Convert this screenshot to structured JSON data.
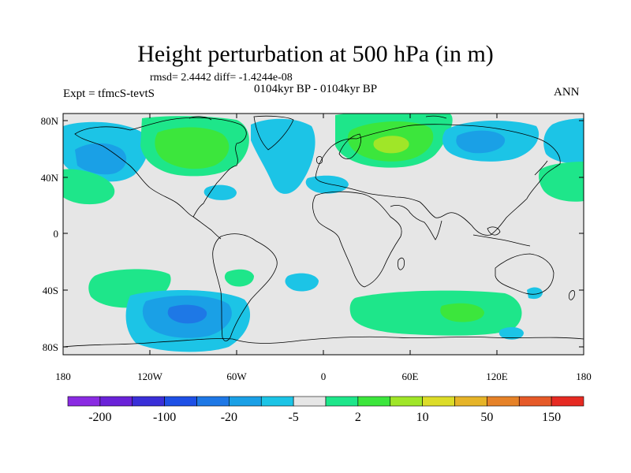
{
  "title": "Height perturbation at 500 hPa (in m)",
  "stats": "rmsd= 2.4442 diff= -1.4244e-08",
  "period": "0104kyr BP - 0104kyr BP",
  "experiment": "Expt = tfmcS-tevtS",
  "season": "ANN",
  "lat_labels": [
    "80N",
    "40N",
    "0",
    "40S",
    "80S"
  ],
  "lon_labels": [
    "180",
    "120W",
    "60W",
    "0",
    "60E",
    "120E",
    "180"
  ],
  "colorbar": {
    "colors": [
      "#8a2be2",
      "#6a22d8",
      "#3a2fd8",
      "#1e50e6",
      "#1e78e6",
      "#1aa0e6",
      "#1cc4e6",
      "#e6e6e6",
      "#1ee68a",
      "#3ce63c",
      "#a0e628",
      "#dcdc28",
      "#e6b428",
      "#e68228",
      "#e65a28",
      "#e62a22"
    ],
    "labels": [
      "-200",
      "-100",
      "-20",
      "-5",
      "2",
      "10",
      "50",
      "150"
    ]
  },
  "palette": {
    "ocean": "#e6e6e6",
    "neg1": "#1cc4e6",
    "neg2": "#1aa0e6",
    "neg3": "#1e78e6",
    "pos1": "#1ee68a",
    "pos2": "#3ce63c",
    "pos3": "#a0e628"
  }
}
